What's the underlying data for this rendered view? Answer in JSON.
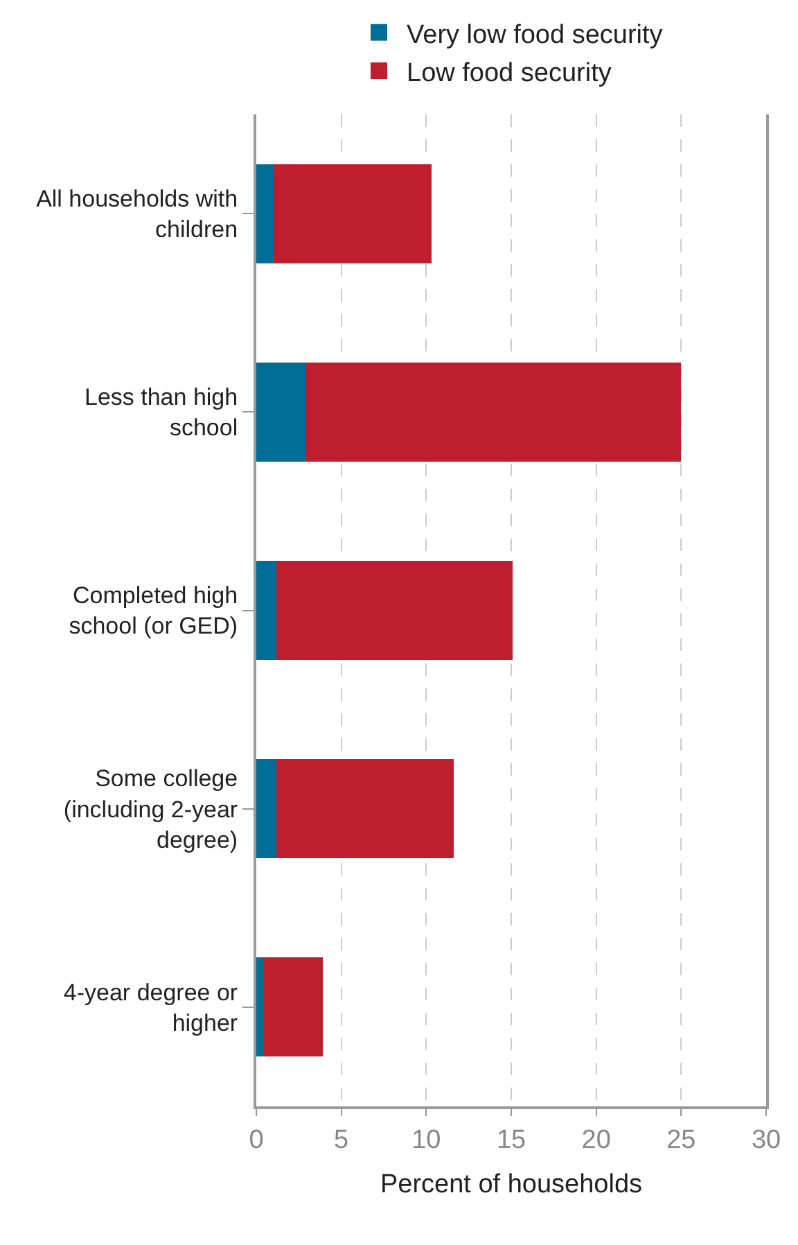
{
  "chart_data": {
    "type": "bar",
    "orientation": "horizontal",
    "stacked": true,
    "xlabel": "Percent of households",
    "categories": [
      "All households with children",
      "Less than high school",
      "Completed high school (or GED)",
      "Some college (including 2-year degree)",
      "4-year degree or higher"
    ],
    "series": [
      {
        "name": "Very low food security",
        "color": "#006e96",
        "values": [
          1.0,
          2.9,
          1.2,
          1.2,
          0.4
        ]
      },
      {
        "name": "Low food security",
        "color": "#be1e2d",
        "values": [
          9.3,
          22.1,
          13.9,
          10.4,
          3.5
        ]
      }
    ],
    "xlim": [
      0,
      30
    ],
    "xticks": [
      0,
      5,
      10,
      15,
      20,
      25,
      30
    ],
    "grid": "x",
    "legend": "top"
  }
}
